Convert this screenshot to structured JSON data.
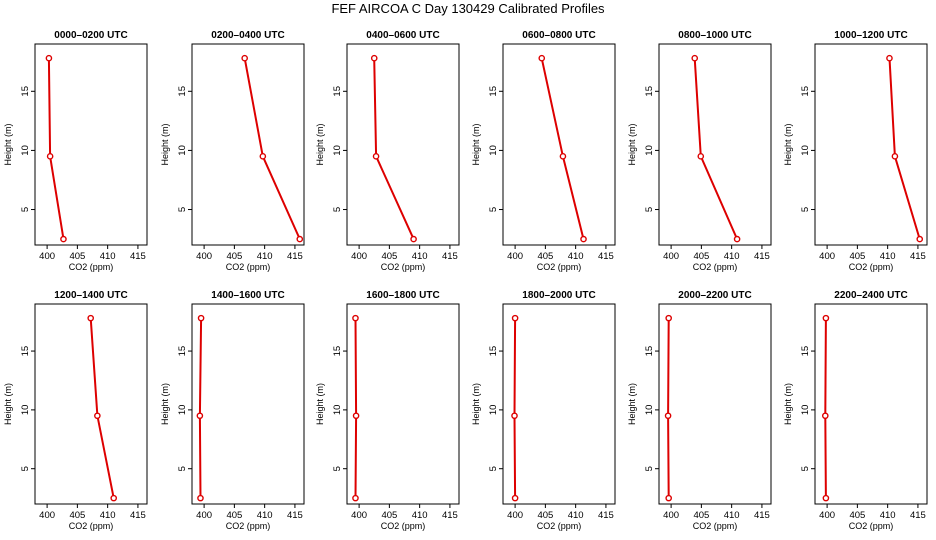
{
  "title": "FEF AIRCOA C  Day 130429  Calibrated Profiles",
  "colors": {
    "line": "#dd0000",
    "axis": "#000000"
  },
  "chart_data": [
    {
      "type": "line",
      "title": "0000–0200 UTC",
      "xlabel": "CO2 (ppm)",
      "ylabel": "Height (m)",
      "xlim": [
        398,
        416.5
      ],
      "ylim": [
        2,
        19
      ],
      "xticks": [
        400,
        405,
        410,
        415
      ],
      "yticks": [
        5,
        10,
        15
      ],
      "series": [
        {
          "x": [
            402.7,
            400.5,
            400.3
          ],
          "y": [
            2.5,
            9.5,
            17.8
          ]
        }
      ]
    },
    {
      "type": "line",
      "title": "0200–0400 UTC",
      "xlabel": "CO2 (ppm)",
      "ylabel": "Height (m)",
      "xlim": [
        398,
        416.5
      ],
      "ylim": [
        2,
        19
      ],
      "xticks": [
        400,
        405,
        410,
        415
      ],
      "yticks": [
        5,
        10,
        15
      ],
      "series": [
        {
          "x": [
            415.8,
            409.7,
            406.7
          ],
          "y": [
            2.5,
            9.5,
            17.8
          ]
        }
      ]
    },
    {
      "type": "line",
      "title": "0400–0600 UTC",
      "xlabel": "CO2 (ppm)",
      "ylabel": "Height (m)",
      "xlim": [
        398,
        416.5
      ],
      "ylim": [
        2,
        19
      ],
      "xticks": [
        400,
        405,
        410,
        415
      ],
      "yticks": [
        5,
        10,
        15
      ],
      "series": [
        {
          "x": [
            409.0,
            402.8,
            402.5
          ],
          "y": [
            2.5,
            9.5,
            17.8
          ]
        }
      ]
    },
    {
      "type": "line",
      "title": "0600–0800 UTC",
      "xlabel": "CO2 (ppm)",
      "ylabel": "Height (m)",
      "xlim": [
        398,
        416.5
      ],
      "ylim": [
        2,
        19
      ],
      "xticks": [
        400,
        405,
        410,
        415
      ],
      "yticks": [
        5,
        10,
        15
      ],
      "series": [
        {
          "x": [
            411.3,
            407.9,
            404.4
          ],
          "y": [
            2.5,
            9.5,
            17.8
          ]
        }
      ]
    },
    {
      "type": "line",
      "title": "0800–1000 UTC",
      "xlabel": "CO2 (ppm)",
      "ylabel": "Height (m)",
      "xlim": [
        398,
        416.5
      ],
      "ylim": [
        2,
        19
      ],
      "xticks": [
        400,
        405,
        410,
        415
      ],
      "yticks": [
        5,
        10,
        15
      ],
      "series": [
        {
          "x": [
            410.9,
            404.9,
            403.9
          ],
          "y": [
            2.5,
            9.5,
            17.8
          ]
        }
      ]
    },
    {
      "type": "line",
      "title": "1000–1200 UTC",
      "xlabel": "CO2 (ppm)",
      "ylabel": "Height (m)",
      "xlim": [
        398,
        416.5
      ],
      "ylim": [
        2,
        19
      ],
      "xticks": [
        400,
        405,
        410,
        415
      ],
      "yticks": [
        5,
        10,
        15
      ],
      "series": [
        {
          "x": [
            415.3,
            411.2,
            410.3
          ],
          "y": [
            2.5,
            9.5,
            17.8
          ]
        }
      ]
    },
    {
      "type": "line",
      "title": "1200–1400 UTC",
      "xlabel": "CO2 (ppm)",
      "ylabel": "Height (m)",
      "xlim": [
        398,
        416.5
      ],
      "ylim": [
        2,
        19
      ],
      "xticks": [
        400,
        405,
        410,
        415
      ],
      "yticks": [
        5,
        10,
        15
      ],
      "series": [
        {
          "x": [
            411.0,
            408.3,
            407.2
          ],
          "y": [
            2.5,
            9.5,
            17.8
          ]
        }
      ]
    },
    {
      "type": "line",
      "title": "1400–1600 UTC",
      "xlabel": "CO2 (ppm)",
      "ylabel": "Height (m)",
      "xlim": [
        398,
        416.5
      ],
      "ylim": [
        2,
        19
      ],
      "xticks": [
        400,
        405,
        410,
        415
      ],
      "yticks": [
        5,
        10,
        15
      ],
      "series": [
        {
          "x": [
            399.4,
            399.3,
            399.5
          ],
          "y": [
            2.5,
            9.5,
            17.8
          ]
        }
      ]
    },
    {
      "type": "line",
      "title": "1600–1800 UTC",
      "xlabel": "CO2 (ppm)",
      "ylabel": "Height (m)",
      "xlim": [
        398,
        416.5
      ],
      "ylim": [
        2,
        19
      ],
      "xticks": [
        400,
        405,
        410,
        415
      ],
      "yticks": [
        5,
        10,
        15
      ],
      "series": [
        {
          "x": [
            399.4,
            399.5,
            399.4
          ],
          "y": [
            2.5,
            9.5,
            17.8
          ]
        }
      ]
    },
    {
      "type": "line",
      "title": "1800–2000 UTC",
      "xlabel": "CO2 (ppm)",
      "ylabel": "Height (m)",
      "xlim": [
        398,
        416.5
      ],
      "ylim": [
        2,
        19
      ],
      "xticks": [
        400,
        405,
        410,
        415
      ],
      "yticks": [
        5,
        10,
        15
      ],
      "series": [
        {
          "x": [
            400.0,
            399.9,
            400.0
          ],
          "y": [
            2.5,
            9.5,
            17.8
          ]
        }
      ]
    },
    {
      "type": "line",
      "title": "2000–2200 UTC",
      "xlabel": "CO2 (ppm)",
      "ylabel": "Height (m)",
      "xlim": [
        398,
        416.5
      ],
      "ylim": [
        2,
        19
      ],
      "xticks": [
        400,
        405,
        410,
        415
      ],
      "yticks": [
        5,
        10,
        15
      ],
      "series": [
        {
          "x": [
            399.6,
            399.5,
            399.6
          ],
          "y": [
            2.5,
            9.5,
            17.8
          ]
        }
      ]
    },
    {
      "type": "line",
      "title": "2200–2400 UTC",
      "xlabel": "CO2 (ppm)",
      "ylabel": "Height (m)",
      "xlim": [
        398,
        416.5
      ],
      "ylim": [
        2,
        19
      ],
      "xticks": [
        400,
        405,
        410,
        415
      ],
      "yticks": [
        5,
        10,
        15
      ],
      "series": [
        {
          "x": [
            399.8,
            399.7,
            399.8
          ],
          "y": [
            2.5,
            9.5,
            17.8
          ]
        }
      ]
    }
  ]
}
